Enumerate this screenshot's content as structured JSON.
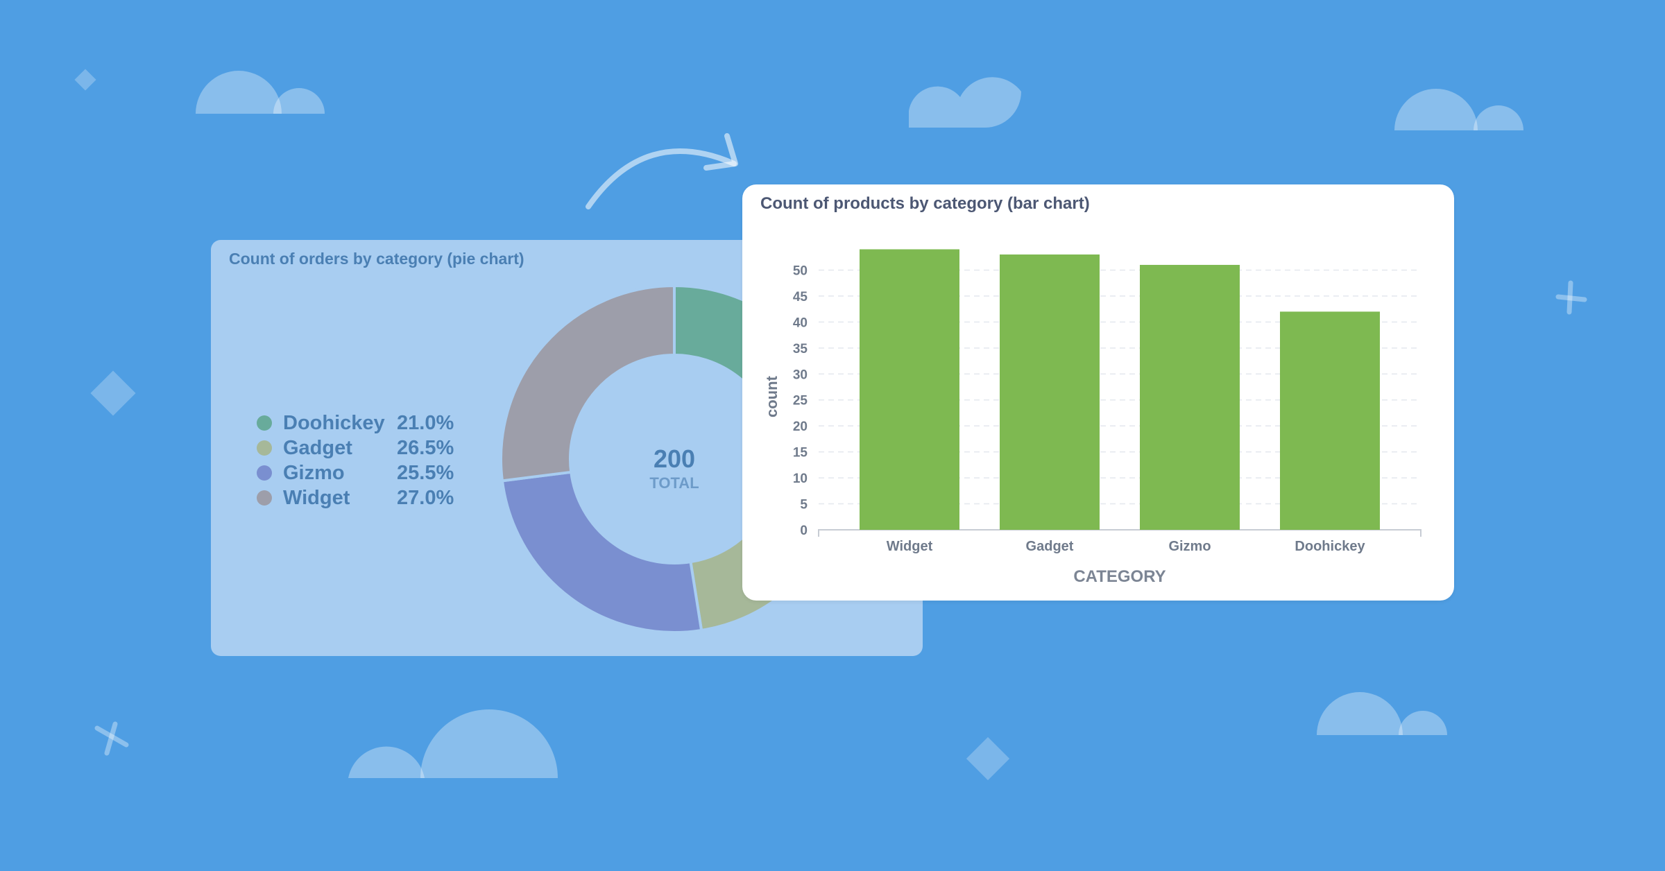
{
  "colors": {
    "background": "#4f9ee3",
    "bar": "#7eb951",
    "doohickey": "#68ab9b",
    "gadget": "#a6b899",
    "gizmo": "#7a8fd0",
    "widget": "#9d9eaa"
  },
  "decorations": {
    "clouds": 6,
    "diamonds": 4,
    "crosses": 2,
    "arrow": "curved-arrow-icon"
  },
  "pie_card": {
    "title": "Count of orders by category (pie chart)",
    "total_value": "200",
    "total_label": "TOTAL"
  },
  "bar_card": {
    "title": "Count of products by category (bar chart)"
  },
  "chart_data": [
    {
      "type": "pie",
      "style": "donut",
      "title": "Count of orders by category (pie chart)",
      "categories": [
        "Doohickey",
        "Gadget",
        "Gizmo",
        "Widget"
      ],
      "percent_labels": [
        "21.0%",
        "26.5%",
        "25.5%",
        "27.0%"
      ],
      "values": [
        21.0,
        26.5,
        25.5,
        27.0
      ],
      "total": 200,
      "legend": "left"
    },
    {
      "type": "bar",
      "title": "Count of products by category (bar chart)",
      "categories": [
        "Widget",
        "Gadget",
        "Gizmo",
        "Doohickey"
      ],
      "values": [
        54,
        53,
        51,
        42
      ],
      "xlabel": "CATEGORY",
      "ylabel": "count",
      "ylim": [
        0,
        55
      ],
      "yticks": [
        0,
        5,
        10,
        15,
        20,
        25,
        30,
        35,
        40,
        45,
        50
      ],
      "grid": true
    }
  ]
}
